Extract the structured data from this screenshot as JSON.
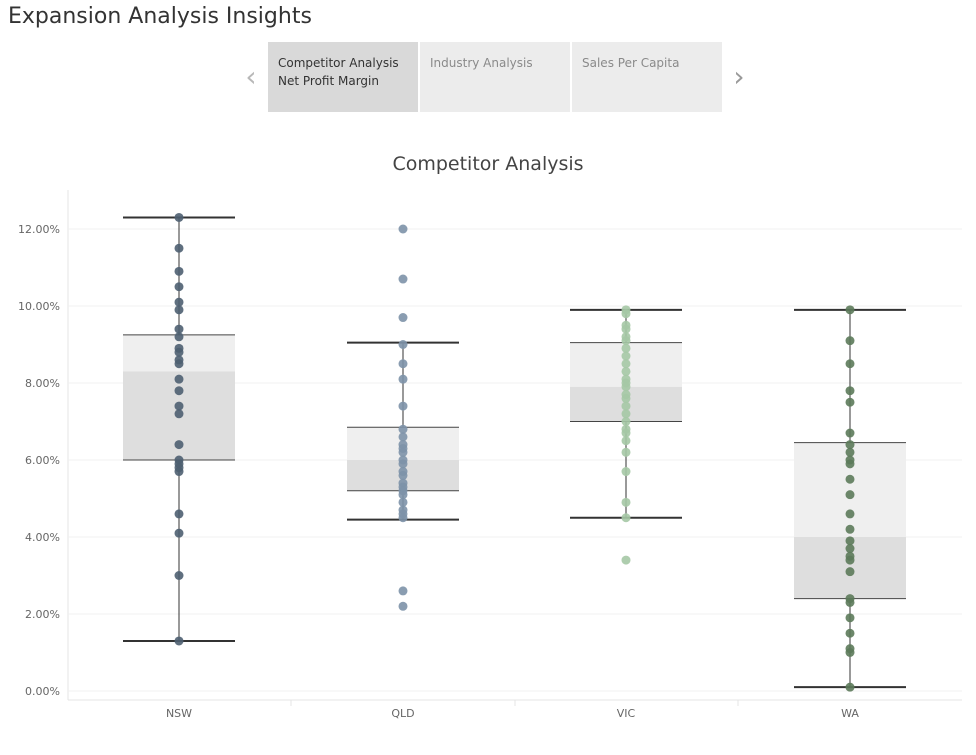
{
  "page_title": "Expansion Analysis Insights",
  "story": {
    "prev_icon": "chevron-left-icon",
    "next_icon": "chevron-right-icon",
    "tabs": [
      {
        "label": "Competitor Analysis",
        "sublabel": "Net Profit Margin",
        "active": true
      },
      {
        "label": "Industry Analysis",
        "sublabel": "",
        "active": false
      },
      {
        "label": "Sales Per Capita",
        "sublabel": "",
        "active": false
      }
    ]
  },
  "chart_data": {
    "type": "boxplot",
    "title": "Competitor Analysis",
    "xlabel": "",
    "ylabel": "",
    "ylim": [
      0,
      13
    ],
    "y_ticks": [
      "0.00%",
      "2.00%",
      "4.00%",
      "6.00%",
      "8.00%",
      "10.00%",
      "12.00%"
    ],
    "y_tick_values": [
      0,
      2,
      4,
      6,
      8,
      10,
      12
    ],
    "categories": [
      "NSW",
      "QLD",
      "VIC",
      "WA"
    ],
    "colors": {
      "NSW": "#4e5f71",
      "QLD": "#7d92a8",
      "VIC": "#a5c8a5",
      "WA": "#5c7a5a"
    },
    "boxes": [
      {
        "category": "NSW",
        "whisker_low": 1.3,
        "q1": 6.0,
        "median": 8.3,
        "q3": 9.25,
        "whisker_high": 12.3
      },
      {
        "category": "QLD",
        "whisker_low": 4.45,
        "q1": 5.2,
        "median": 6.0,
        "q3": 6.85,
        "whisker_high": 9.05
      },
      {
        "category": "VIC",
        "whisker_low": 4.5,
        "q1": 7.0,
        "median": 7.9,
        "q3": 9.05,
        "whisker_high": 9.9
      },
      {
        "category": "WA",
        "whisker_low": 0.1,
        "q1": 2.4,
        "median": 4.0,
        "q3": 6.45,
        "whisker_high": 9.9
      }
    ],
    "points": {
      "NSW": [
        12.3,
        11.5,
        10.9,
        10.5,
        10.1,
        9.9,
        9.4,
        9.2,
        8.9,
        8.8,
        8.6,
        8.5,
        8.1,
        7.8,
        7.4,
        7.2,
        6.4,
        6.0,
        5.9,
        5.8,
        5.7,
        4.6,
        4.1,
        3.0,
        1.3
      ],
      "QLD": [
        12.0,
        10.7,
        9.7,
        9.0,
        8.5,
        8.1,
        7.4,
        6.8,
        6.6,
        6.4,
        6.3,
        6.2,
        6.0,
        5.9,
        5.7,
        5.6,
        5.4,
        5.3,
        5.2,
        5.1,
        4.9,
        4.7,
        4.6,
        4.5,
        2.6,
        2.2
      ],
      "VIC": [
        9.9,
        9.8,
        9.5,
        9.4,
        9.2,
        9.1,
        8.9,
        8.7,
        8.5,
        8.3,
        8.1,
        8.0,
        7.9,
        7.7,
        7.6,
        7.4,
        7.2,
        7.0,
        6.8,
        6.7,
        6.5,
        6.2,
        5.7,
        4.9,
        4.5,
        3.4
      ],
      "WA": [
        9.9,
        9.1,
        8.5,
        7.8,
        7.5,
        6.7,
        6.4,
        6.2,
        6.0,
        5.9,
        5.5,
        5.1,
        4.6,
        4.2,
        3.9,
        3.7,
        3.5,
        3.4,
        3.1,
        2.4,
        2.3,
        1.9,
        1.5,
        1.1,
        1.0,
        0.1
      ]
    }
  }
}
